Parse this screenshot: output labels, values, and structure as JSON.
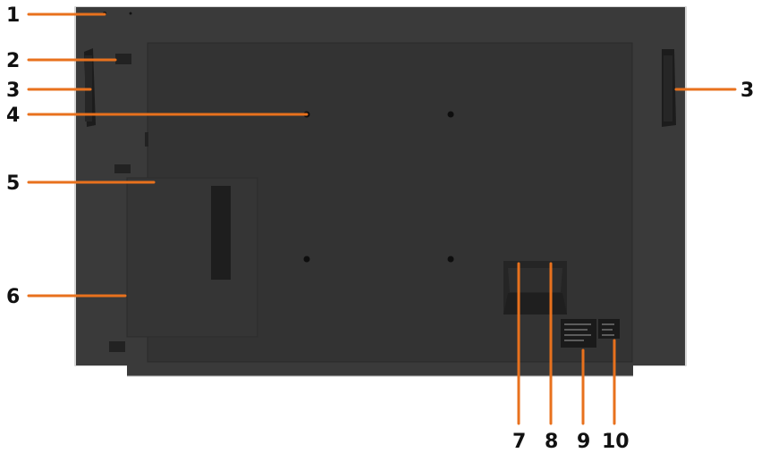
{
  "colors": {
    "callout": "#e8711d",
    "monitor_body": "#3b3b3b",
    "monitor_frame": "#cfcfcf",
    "text": "#111111"
  },
  "labels": {
    "left": [
      "1",
      "2",
      "3",
      "4",
      "5",
      "6"
    ],
    "right": [
      "3"
    ],
    "bottom": [
      "7",
      "8",
      "9",
      "10"
    ]
  }
}
